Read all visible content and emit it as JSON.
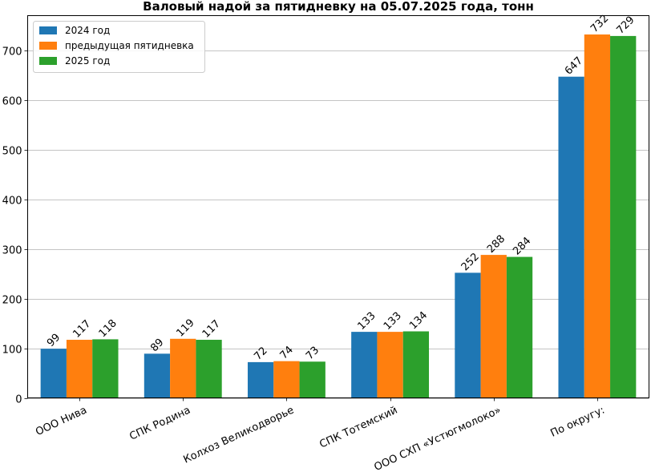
{
  "chart_data": {
    "type": "bar",
    "title": "Валовый надой за пятидневку на 05.07.2025 года, тонн",
    "xlabel": "",
    "ylabel": "",
    "categories": [
      "ООО Нива",
      "СПК Родина",
      "Колхоз Великодворье",
      "СПК Тотемский",
      "ООО СХП «Устюгмолоко»",
      "По округу:"
    ],
    "series": [
      {
        "name": "2024 год",
        "color": "#1f77b4",
        "values": [
          99,
          89,
          72,
          133,
          252,
          647
        ]
      },
      {
        "name": "предыдущая пятидневка",
        "color": "#ff7f0e",
        "values": [
          117,
          119,
          74,
          133,
          288,
          732
        ]
      },
      {
        "name": "2025 год",
        "color": "#2ca02c",
        "values": [
          118,
          117,
          73,
          134,
          284,
          729
        ]
      }
    ],
    "ylim": [
      0,
      770
    ],
    "yticks": [
      0,
      100,
      200,
      300,
      400,
      500,
      600,
      700
    ],
    "grid": "y",
    "legend_position": "top-left",
    "data_labels": true
  }
}
